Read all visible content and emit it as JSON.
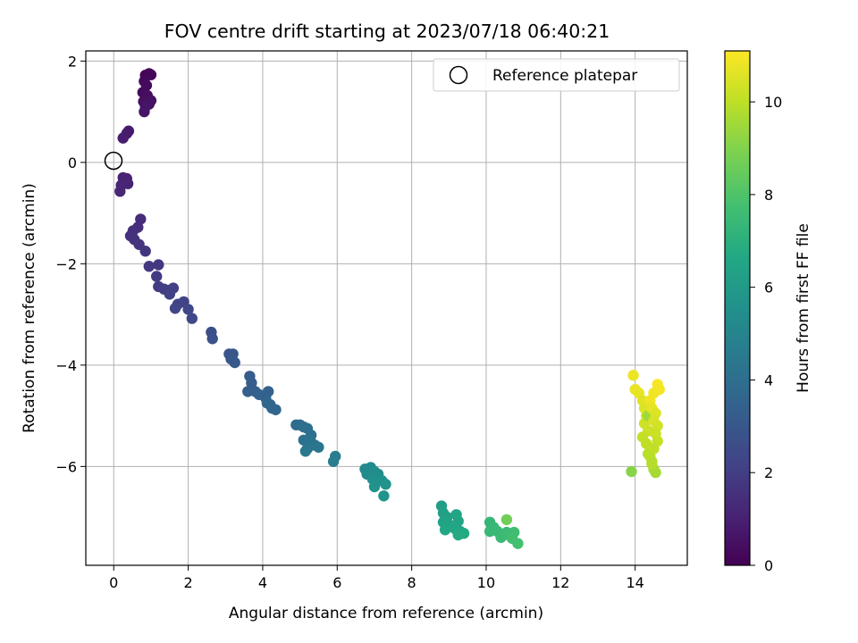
{
  "chart_data": {
    "type": "scatter",
    "title": "FOV centre drift starting at 2023/07/18 06:40:21",
    "xlabel": "Angular distance from reference (arcmin)",
    "ylabel": "Rotation from reference (arcmin)",
    "xlim": [
      -0.75,
      15.4
    ],
    "ylim": [
      -7.95,
      2.2
    ],
    "xticks": [
      0,
      2,
      4,
      6,
      8,
      10,
      12,
      14
    ],
    "yticks": [
      -6,
      -4,
      -2,
      0,
      2
    ],
    "xtick_labels": [
      "0",
      "2",
      "4",
      "6",
      "8",
      "10",
      "12",
      "14"
    ],
    "ytick_labels": [
      "−6",
      "−4",
      "−2",
      "0",
      "2"
    ],
    "grid": true,
    "legend": {
      "placement": "top-right",
      "entries": [
        "Reference platepar"
      ]
    },
    "reference_point": {
      "x": 0,
      "y": 0,
      "label": "Reference platepar"
    },
    "colorbar": {
      "label": "Hours from first FF file",
      "colormap": "viridis",
      "range": [
        0,
        11.1
      ],
      "ticks": [
        0,
        2,
        4,
        6,
        8,
        10
      ],
      "tick_labels": [
        "0",
        "2",
        "4",
        "6",
        "8",
        "10"
      ]
    },
    "points": [
      [
        0.85,
        1.72,
        0.1
      ],
      [
        0.95,
        1.75,
        0.15
      ],
      [
        1.0,
        1.73,
        0.2
      ],
      [
        0.82,
        1.6,
        0.25
      ],
      [
        0.88,
        1.52,
        0.3
      ],
      [
        0.78,
        1.38,
        0.35
      ],
      [
        0.9,
        1.32,
        0.4
      ],
      [
        0.8,
        1.2,
        0.45
      ],
      [
        0.95,
        1.15,
        0.5
      ],
      [
        1.0,
        1.22,
        0.55
      ],
      [
        0.82,
        1.0,
        0.6
      ],
      [
        0.85,
        1.1,
        0.65
      ],
      [
        0.4,
        0.62,
        0.8
      ],
      [
        0.35,
        0.57,
        0.85
      ],
      [
        0.25,
        0.48,
        0.9
      ],
      [
        0.25,
        -0.3,
        1.0
      ],
      [
        0.35,
        -0.32,
        1.05
      ],
      [
        0.38,
        -0.42,
        1.1
      ],
      [
        0.2,
        -0.45,
        1.15
      ],
      [
        0.17,
        -0.57,
        1.2
      ],
      [
        0.72,
        -1.12,
        1.4
      ],
      [
        0.65,
        -1.28,
        1.45
      ],
      [
        0.52,
        -1.35,
        1.5
      ],
      [
        0.45,
        -1.45,
        1.55
      ],
      [
        0.55,
        -1.52,
        1.6
      ],
      [
        0.68,
        -1.62,
        1.65
      ],
      [
        0.85,
        -1.75,
        1.7
      ],
      [
        0.95,
        -2.05,
        1.8
      ],
      [
        1.2,
        -2.02,
        1.85
      ],
      [
        1.15,
        -2.25,
        1.9
      ],
      [
        1.2,
        -2.45,
        1.95
      ],
      [
        1.35,
        -2.5,
        2.0
      ],
      [
        1.5,
        -2.52,
        2.05
      ],
      [
        1.6,
        -2.48,
        2.1
      ],
      [
        1.5,
        -2.6,
        2.15
      ],
      [
        1.72,
        -2.8,
        2.2
      ],
      [
        1.88,
        -2.75,
        2.25
      ],
      [
        1.65,
        -2.88,
        2.3
      ],
      [
        2.0,
        -2.9,
        2.35
      ],
      [
        2.1,
        -3.08,
        2.4
      ],
      [
        2.62,
        -3.35,
        2.65
      ],
      [
        2.65,
        -3.48,
        2.7
      ],
      [
        3.1,
        -3.78,
        2.9
      ],
      [
        3.2,
        -3.78,
        2.95
      ],
      [
        3.15,
        -3.88,
        3.0
      ],
      [
        3.25,
        -3.95,
        3.05
      ],
      [
        3.65,
        -4.22,
        3.2
      ],
      [
        3.7,
        -4.35,
        3.25
      ],
      [
        3.8,
        -4.52,
        3.3
      ],
      [
        3.6,
        -4.52,
        3.35
      ],
      [
        3.9,
        -4.58,
        3.4
      ],
      [
        4.15,
        -4.52,
        3.45
      ],
      [
        4.08,
        -4.65,
        3.5
      ],
      [
        4.2,
        -4.78,
        3.55
      ],
      [
        4.25,
        -4.85,
        3.6
      ],
      [
        4.35,
        -4.88,
        3.65
      ],
      [
        4.12,
        -4.75,
        3.7
      ],
      [
        4.9,
        -5.18,
        3.9
      ],
      [
        5.0,
        -5.18,
        3.95
      ],
      [
        5.1,
        -5.22,
        4.0
      ],
      [
        5.2,
        -5.25,
        4.05
      ],
      [
        5.3,
        -5.38,
        4.1
      ],
      [
        5.1,
        -5.48,
        4.15
      ],
      [
        5.3,
        -5.52,
        4.2
      ],
      [
        5.4,
        -5.58,
        4.25
      ],
      [
        5.2,
        -5.65,
        4.3
      ],
      [
        5.5,
        -5.62,
        4.35
      ],
      [
        5.15,
        -5.7,
        4.4
      ],
      [
        5.95,
        -5.8,
        4.65
      ],
      [
        5.9,
        -5.9,
        4.7
      ],
      [
        6.75,
        -6.05,
        5.2
      ],
      [
        6.9,
        -6.02,
        5.25
      ],
      [
        6.8,
        -6.15,
        5.3
      ],
      [
        7.0,
        -6.1,
        5.35
      ],
      [
        7.1,
        -6.15,
        5.4
      ],
      [
        6.95,
        -6.25,
        5.45
      ],
      [
        7.05,
        -6.3,
        5.5
      ],
      [
        7.2,
        -6.28,
        5.55
      ],
      [
        7.3,
        -6.35,
        5.6
      ],
      [
        7.0,
        -6.4,
        5.65
      ],
      [
        7.25,
        -6.58,
        5.7
      ],
      [
        8.8,
        -6.78,
        6.2
      ],
      [
        8.85,
        -6.92,
        6.25
      ],
      [
        8.95,
        -7.0,
        6.3
      ],
      [
        8.85,
        -7.1,
        6.35
      ],
      [
        9.0,
        -7.15,
        6.4
      ],
      [
        9.2,
        -6.95,
        6.45
      ],
      [
        9.25,
        -7.08,
        6.5
      ],
      [
        9.15,
        -7.22,
        6.55
      ],
      [
        8.9,
        -7.25,
        6.6
      ],
      [
        9.3,
        -7.28,
        6.65
      ],
      [
        9.4,
        -7.32,
        6.7
      ],
      [
        9.25,
        -7.35,
        6.75
      ],
      [
        10.1,
        -7.1,
        7.3
      ],
      [
        10.2,
        -7.2,
        7.35
      ],
      [
        10.1,
        -7.28,
        7.4
      ],
      [
        10.3,
        -7.28,
        7.45
      ],
      [
        10.4,
        -7.4,
        7.5
      ],
      [
        10.55,
        -7.3,
        7.55
      ],
      [
        10.6,
        -7.35,
        7.6
      ],
      [
        10.75,
        -7.3,
        7.65
      ],
      [
        10.7,
        -7.42,
        7.7
      ],
      [
        10.85,
        -7.52,
        7.75
      ],
      [
        10.55,
        -7.05,
        8.7
      ],
      [
        13.9,
        -6.1,
        9.1
      ],
      [
        13.95,
        -4.2,
        10.8
      ],
      [
        14.0,
        -4.48,
        10.75
      ],
      [
        14.1,
        -4.55,
        10.7
      ],
      [
        14.2,
        -4.7,
        10.6
      ],
      [
        14.25,
        -4.85,
        10.5
      ],
      [
        14.3,
        -5.0,
        10.4
      ],
      [
        14.25,
        -5.15,
        10.3
      ],
      [
        14.35,
        -5.3,
        10.2
      ],
      [
        14.2,
        -5.42,
        10.1
      ],
      [
        14.3,
        -5.55,
        10.0
      ],
      [
        14.35,
        -5.75,
        9.9
      ],
      [
        14.45,
        -5.9,
        9.8
      ],
      [
        14.5,
        -6.05,
        9.7
      ],
      [
        14.55,
        -6.12,
        9.6
      ],
      [
        14.35,
        -5.0,
        9.5
      ],
      [
        14.6,
        -4.38,
        11.0
      ],
      [
        14.65,
        -4.48,
        10.95
      ],
      [
        14.5,
        -4.55,
        10.9
      ],
      [
        14.4,
        -4.7,
        10.85
      ],
      [
        14.45,
        -4.85,
        10.65
      ],
      [
        14.55,
        -4.95,
        10.55
      ],
      [
        14.5,
        -5.1,
        10.45
      ],
      [
        14.6,
        -5.2,
        10.35
      ],
      [
        14.55,
        -5.35,
        10.25
      ],
      [
        14.6,
        -5.5,
        10.15
      ],
      [
        14.5,
        -5.65,
        10.05
      ],
      [
        14.4,
        -5.8,
        9.95
      ],
      [
        14.45,
        -5.95,
        9.85
      ]
    ]
  }
}
